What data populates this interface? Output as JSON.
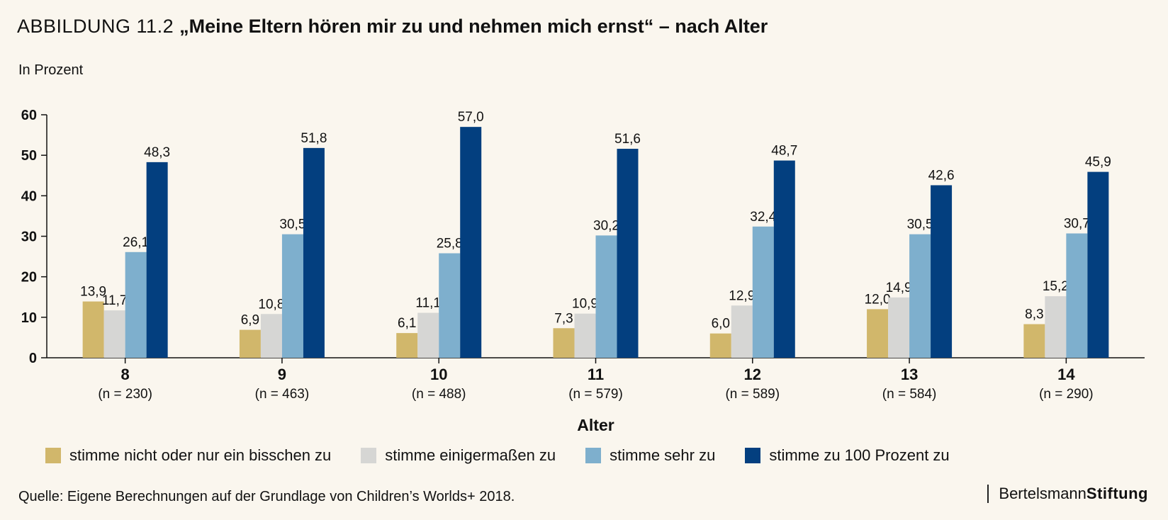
{
  "header": {
    "prefix": "ABBILDUNG 11.2",
    "title": "„Meine Eltern hören mir zu und nehmen mich ernst“ – nach Alter",
    "unit_label": "In Prozent"
  },
  "footer": {
    "source": "Quelle: Eigene Berechnungen auf der Grundlage von Children’s Worlds+ 2018.",
    "brand_part1": "Bertelsmann",
    "brand_part2": "Stiftung"
  },
  "colors": {
    "background": "#faf6ee",
    "series": [
      "#d1b76b",
      "#d6d6d4",
      "#7eafcd",
      "#033f7f"
    ]
  },
  "chart_data": {
    "type": "bar",
    "title": "„Meine Eltern hören mir zu und nehmen mich ernst“ – nach Alter",
    "xlabel": "Alter",
    "ylabel": "In Prozent",
    "ylim": [
      0,
      60
    ],
    "yticks": [
      0,
      10,
      20,
      30,
      40,
      50,
      60
    ],
    "grid": false,
    "legend_position": "bottom",
    "categories": [
      "8",
      "9",
      "10",
      "11",
      "12",
      "13",
      "14"
    ],
    "category_sublabels": [
      "(n = 230)",
      "(n = 463)",
      "(n = 488)",
      "(n = 579)",
      "(n = 589)",
      "(n = 584)",
      "(n = 290)"
    ],
    "series": [
      {
        "name": "stimme nicht oder nur ein bisschen zu",
        "color": "#d1b76b",
        "values": [
          13.9,
          6.9,
          6.1,
          7.3,
          6.0,
          12.0,
          8.3
        ],
        "labels": [
          "13,9",
          "6,9",
          "6,1",
          "7,3",
          "6,0",
          "12,0",
          "8,3"
        ]
      },
      {
        "name": "stimme einigermaßen zu",
        "color": "#d6d6d4",
        "values": [
          11.7,
          10.8,
          11.1,
          10.9,
          12.9,
          14.9,
          15.2
        ],
        "labels": [
          "11,7",
          "10,8",
          "11,1",
          "10,9",
          "12,9",
          "14,9",
          "15,2"
        ]
      },
      {
        "name": "stimme sehr zu",
        "color": "#7eafcd",
        "values": [
          26.1,
          30.5,
          25.8,
          30.2,
          32.4,
          30.5,
          30.7
        ],
        "labels": [
          "26,1",
          "30,5",
          "25,8",
          "30,2",
          "32,4",
          "30,5",
          "30,7"
        ]
      },
      {
        "name": "stimme zu 100 Prozent zu",
        "color": "#033f7f",
        "values": [
          48.3,
          51.8,
          57.0,
          51.6,
          48.7,
          42.6,
          45.9
        ],
        "labels": [
          "48,3",
          "51,8",
          "57,0",
          "51,6",
          "48,7",
          "42,6",
          "45,9"
        ]
      }
    ]
  }
}
